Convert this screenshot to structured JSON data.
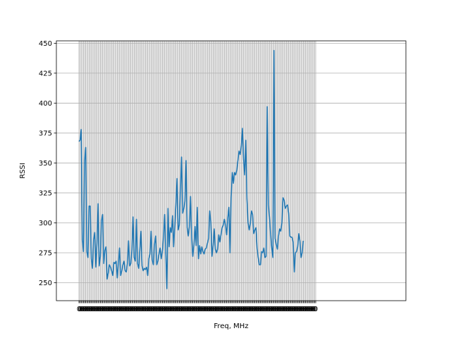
{
  "chart_data": {
    "type": "line",
    "title": "",
    "xlabel": "Freq, MHz",
    "ylabel": "RSSI",
    "ylim": [
      235,
      452
    ],
    "xlim": [
      -20,
      290
    ],
    "grid": true,
    "legend": "none",
    "x_tick_label": "0",
    "x_tick_count": 211,
    "y_ticks": [
      250,
      275,
      300,
      325,
      350,
      375,
      400,
      425,
      450
    ],
    "line_color": "#1f77b4",
    "series": [
      {
        "y": [
          368,
          369,
          378,
          286,
          276,
          352,
          363,
          276,
          271,
          314,
          314,
          270,
          262,
          286,
          292,
          263,
          283,
          316,
          264,
          272,
          302,
          307,
          266,
          277,
          280,
          253,
          258,
          265,
          263,
          260,
          256,
          267,
          266,
          268,
          254,
          266,
          279,
          256,
          260,
          265,
          268,
          260,
          259,
          266,
          285,
          264,
          266,
          278,
          305,
          271,
          268,
          303,
          266,
          262,
          277,
          293,
          264,
          260,
          262,
          261,
          263,
          256,
          270,
          274,
          293,
          269,
          265,
          282,
          289,
          265,
          268,
          274,
          279,
          270,
          276,
          288,
          307,
          275,
          245,
          312,
          280,
          296,
          292,
          306,
          280,
          297,
          315,
          337,
          294,
          298,
          327,
          355,
          308,
          312,
          318,
          352,
          296,
          289,
          297,
          322,
          287,
          272,
          282,
          297,
          281,
          313,
          270,
          281,
          274,
          280,
          276,
          274,
          278,
          279,
          283,
          287,
          310,
          300,
          272,
          281,
          295,
          278,
          275,
          278,
          290,
          284,
          290,
          296,
          298,
          303,
          298,
          290,
          304,
          313,
          275,
          321,
          342,
          333,
          342,
          340,
          344,
          352,
          360,
          357,
          364,
          379,
          353,
          340,
          369,
          320,
          300,
          294,
          299,
          310,
          307,
          291,
          294,
          296,
          279,
          271,
          265,
          265,
          276,
          275,
          279,
          271,
          272,
          397,
          315,
          305,
          290,
          279,
          271,
          444,
          287,
          282,
          278,
          289,
          295,
          293,
          300,
          321,
          319,
          312,
          314,
          315,
          308,
          289,
          288,
          288,
          284,
          259,
          275,
          276,
          280,
          291,
          285,
          271,
          275,
          285
        ]
      }
    ]
  }
}
